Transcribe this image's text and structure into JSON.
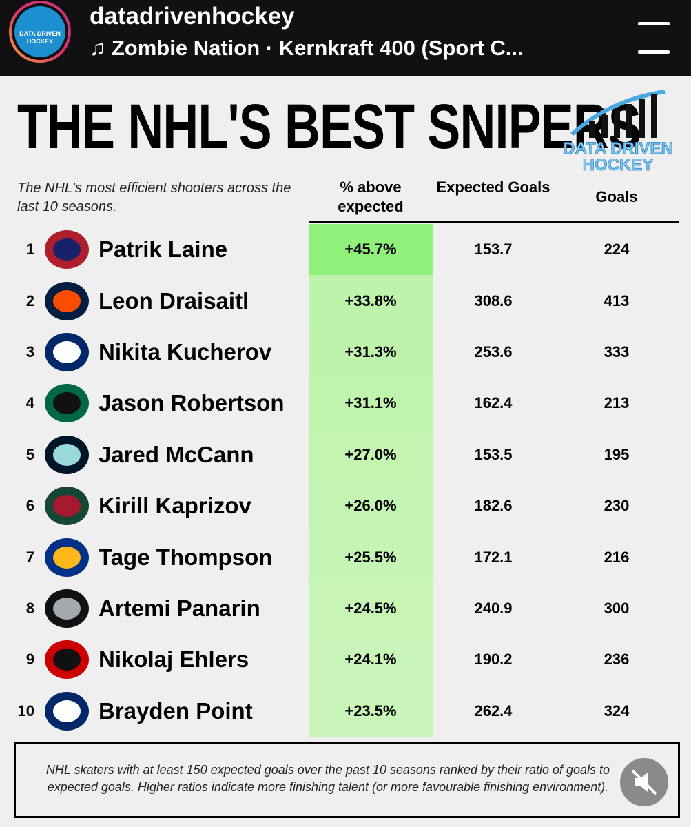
{
  "header": {
    "account": "datadrivenhockey",
    "song": "Zombie Nation · Kernkraft 400 (Sport C...",
    "avatar_text": [
      "DATA DRIVEN",
      "HOCKEY"
    ]
  },
  "title": "THE NHL'S BEST SNIPERS",
  "logo": [
    "DATA DRIVEN",
    "HOCKEY"
  ],
  "subtitle": "The NHL's most efficient shooters across the last 10 seasons.",
  "table": {
    "columns": [
      "% above expected",
      "Expected Goals",
      "Goals"
    ],
    "rows": [
      [
        "1",
        "Patrik Laine",
        "+45.7%",
        "153.7",
        "224"
      ],
      [
        "2",
        "Leon Draisaitl",
        "+33.8%",
        "308.6",
        "413"
      ],
      [
        "3",
        "Nikita Kucherov",
        "+31.3%",
        "253.6",
        "333"
      ],
      [
        "4",
        "Jason Robertson",
        "+31.1%",
        "162.4",
        "213"
      ],
      [
        "5",
        "Jared McCann",
        "+27.0%",
        "153.5",
        "195"
      ],
      [
        "6",
        "Kirill Kaprizov",
        "+26.0%",
        "182.6",
        "230"
      ],
      [
        "7",
        "Tage Thompson",
        "+25.5%",
        "172.1",
        "216"
      ],
      [
        "8",
        "Artemi Panarin",
        "+24.5%",
        "240.9",
        "300"
      ],
      [
        "9",
        "Nikolaj Ehlers",
        "+24.1%",
        "190.2",
        "236"
      ],
      [
        "10",
        "Brayden Point",
        "+23.5%",
        "262.4",
        "324"
      ]
    ]
  },
  "footnote": "NHL skaters with at least 150 expected goals over the past 10 seasons ranked by their ratio of goals to expected goals. Higher ratios indicate more finishing talent (or more favourable finishing environment)."
}
